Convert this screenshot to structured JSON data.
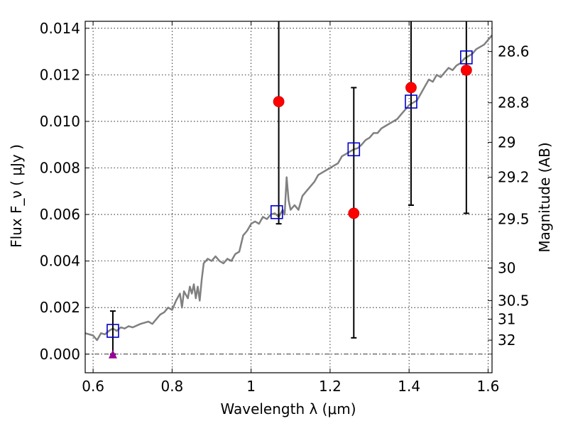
{
  "chart_data": {
    "type": "scatter",
    "xlabel": "Wavelength λ (μm)",
    "ylabel": "Flux F_ν ( μJy )",
    "ylabel_right": "Magnitude (AB)",
    "xlim": [
      0.58,
      1.61
    ],
    "ylim": [
      -0.0008,
      0.0143
    ],
    "grid": true,
    "x_ticks": [
      0.6,
      0.8,
      1.0,
      1.2,
      1.4,
      1.6
    ],
    "x_tick_labels": [
      "0.6",
      "0.8",
      "1",
      "1.2",
      "1.4",
      "1.6"
    ],
    "y_ticks": [
      0.0,
      0.002,
      0.004,
      0.006,
      0.008,
      0.01,
      0.012,
      0.014
    ],
    "y_tick_labels": [
      "0.000",
      "0.002",
      "0.004",
      "0.006",
      "0.008",
      "0.010",
      "0.012",
      "0.014"
    ],
    "mag_ticks": [
      {
        "label": "28.6",
        "flux": 0.013
      },
      {
        "label": "28.8",
        "flux": 0.0108
      },
      {
        "label": "29",
        "flux": 0.0091
      },
      {
        "label": "29.2",
        "flux": 0.0076
      },
      {
        "label": "29.5",
        "flux": 0.0058
      },
      {
        "label": "30",
        "flux": 0.0037
      },
      {
        "label": "30.5",
        "flux": 0.0023
      },
      {
        "label": "31",
        "flux": 0.0015
      },
      {
        "label": "32",
        "flux": 0.0006
      }
    ],
    "series": [
      {
        "kind": "sed_line",
        "color": "#808080",
        "points": [
          [
            0.58,
            0.0009
          ],
          [
            0.6,
            0.0008
          ],
          [
            0.61,
            0.0006
          ],
          [
            0.62,
            0.0009
          ],
          [
            0.63,
            0.00085
          ],
          [
            0.64,
            0.001
          ],
          [
            0.65,
            0.0011
          ],
          [
            0.66,
            0.001
          ],
          [
            0.67,
            0.00115
          ],
          [
            0.68,
            0.0011
          ],
          [
            0.69,
            0.0012
          ],
          [
            0.7,
            0.00115
          ],
          [
            0.72,
            0.0013
          ],
          [
            0.74,
            0.0014
          ],
          [
            0.75,
            0.0013
          ],
          [
            0.76,
            0.0015
          ],
          [
            0.77,
            0.0017
          ],
          [
            0.78,
            0.0018
          ],
          [
            0.79,
            0.002
          ],
          [
            0.8,
            0.0019
          ],
          [
            0.81,
            0.0023
          ],
          [
            0.82,
            0.0026
          ],
          [
            0.825,
            0.002
          ],
          [
            0.83,
            0.0027
          ],
          [
            0.84,
            0.0024
          ],
          [
            0.845,
            0.0029
          ],
          [
            0.85,
            0.0026
          ],
          [
            0.855,
            0.003
          ],
          [
            0.86,
            0.0024
          ],
          [
            0.865,
            0.0029
          ],
          [
            0.87,
            0.0023
          ],
          [
            0.875,
            0.0032
          ],
          [
            0.88,
            0.0039
          ],
          [
            0.89,
            0.0041
          ],
          [
            0.9,
            0.004
          ],
          [
            0.91,
            0.0042
          ],
          [
            0.92,
            0.004
          ],
          [
            0.93,
            0.0039
          ],
          [
            0.94,
            0.0041
          ],
          [
            0.95,
            0.004
          ],
          [
            0.96,
            0.0043
          ],
          [
            0.97,
            0.0044
          ],
          [
            0.98,
            0.0051
          ],
          [
            0.99,
            0.0053
          ],
          [
            1.0,
            0.0056
          ],
          [
            1.01,
            0.0057
          ],
          [
            1.02,
            0.0056
          ],
          [
            1.03,
            0.0059
          ],
          [
            1.04,
            0.0058
          ],
          [
            1.05,
            0.006
          ],
          [
            1.06,
            0.00605
          ],
          [
            1.07,
            0.0059
          ],
          [
            1.08,
            0.0062
          ],
          [
            1.085,
            0.006
          ],
          [
            1.09,
            0.0076
          ],
          [
            1.095,
            0.0066
          ],
          [
            1.1,
            0.0062
          ],
          [
            1.11,
            0.0064
          ],
          [
            1.12,
            0.0062
          ],
          [
            1.13,
            0.0068
          ],
          [
            1.14,
            0.007
          ],
          [
            1.15,
            0.0072
          ],
          [
            1.16,
            0.0074
          ],
          [
            1.17,
            0.0077
          ],
          [
            1.18,
            0.0078
          ],
          [
            1.19,
            0.0079
          ],
          [
            1.2,
            0.008
          ],
          [
            1.21,
            0.0081
          ],
          [
            1.22,
            0.0082
          ],
          [
            1.23,
            0.0085
          ],
          [
            1.24,
            0.0086
          ],
          [
            1.25,
            0.0087
          ],
          [
            1.26,
            0.0088
          ],
          [
            1.27,
            0.00885
          ],
          [
            1.28,
            0.009
          ],
          [
            1.29,
            0.0092
          ],
          [
            1.3,
            0.0093
          ],
          [
            1.31,
            0.0095
          ],
          [
            1.32,
            0.0095
          ],
          [
            1.33,
            0.0097
          ],
          [
            1.34,
            0.0098
          ],
          [
            1.35,
            0.0099
          ],
          [
            1.36,
            0.01
          ],
          [
            1.37,
            0.0101
          ],
          [
            1.38,
            0.0103
          ],
          [
            1.39,
            0.0105
          ],
          [
            1.4,
            0.0107
          ],
          [
            1.41,
            0.0108
          ],
          [
            1.42,
            0.0109
          ],
          [
            1.43,
            0.0112
          ],
          [
            1.44,
            0.0115
          ],
          [
            1.45,
            0.0118
          ],
          [
            1.46,
            0.0117
          ],
          [
            1.47,
            0.012
          ],
          [
            1.48,
            0.0119
          ],
          [
            1.49,
            0.0121
          ],
          [
            1.5,
            0.0123
          ],
          [
            1.51,
            0.0122
          ],
          [
            1.52,
            0.0124
          ],
          [
            1.53,
            0.0125
          ],
          [
            1.54,
            0.0127
          ],
          [
            1.55,
            0.0128
          ],
          [
            1.56,
            0.0129
          ],
          [
            1.57,
            0.0131
          ],
          [
            1.58,
            0.0132
          ],
          [
            1.59,
            0.0133
          ],
          [
            1.6,
            0.0135
          ],
          [
            1.61,
            0.0137
          ]
        ]
      },
      {
        "kind": "model_squares",
        "color": "#0000cc",
        "points": [
          [
            0.65,
            0.001
          ],
          [
            1.065,
            0.0061
          ],
          [
            1.26,
            0.0088
          ],
          [
            1.405,
            0.01085
          ],
          [
            1.545,
            0.01275
          ]
        ]
      },
      {
        "kind": "observed_points",
        "color": "#ff0000",
        "points": [
          {
            "x": 1.07,
            "y": 0.01085,
            "yerr_low": 0.0056,
            "yerr_high": 0.02
          },
          {
            "x": 1.26,
            "y": 0.00605,
            "yerr_low": 0.0007,
            "yerr_high": 0.01145
          },
          {
            "x": 1.405,
            "y": 0.01145,
            "yerr_low": 0.0064,
            "yerr_high": 0.02
          },
          {
            "x": 1.545,
            "y": 0.0122,
            "yerr_low": 0.00605,
            "yerr_high": 0.02
          }
        ]
      },
      {
        "kind": "upper_limit",
        "color": "#990099",
        "points": [
          {
            "x": 0.65,
            "y": 0.0,
            "yerr_low": 0.0,
            "yerr_high": 0.00185
          }
        ]
      }
    ]
  }
}
